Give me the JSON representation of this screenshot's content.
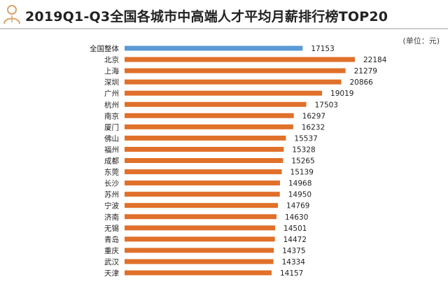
{
  "header": {
    "title": "2019Q1-Q3全国各城市中高端人才平均月薪排行榜TOP20",
    "logo_icon": "person-silhouette-icon"
  },
  "colors": {
    "highlight": "#5b9bd5",
    "bar": "#e0702a",
    "logo": "#d9a36a"
  },
  "chart_data": {
    "type": "bar",
    "orientation": "horizontal",
    "title": "2019Q1-Q3全国各城市中高端人才平均月薪排行榜TOP20",
    "unit_label": "(单位：元)",
    "categories": [
      "全国整体",
      "北京",
      "上海",
      "深圳",
      "广州",
      "杭州",
      "南京",
      "厦门",
      "佛山",
      "福州",
      "成都",
      "东莞",
      "长沙",
      "苏州",
      "宁波",
      "济南",
      "无锡",
      "青岛",
      "重庆",
      "武汉",
      "天津"
    ],
    "values": [
      17153,
      22184,
      21279,
      20866,
      19019,
      17503,
      16297,
      16232,
      15537,
      15328,
      15265,
      15139,
      14968,
      14950,
      14769,
      14630,
      14501,
      14472,
      14375,
      14334,
      14157
    ],
    "highlight_index": 0,
    "data_labels": true,
    "grid": false,
    "legend": "none"
  }
}
